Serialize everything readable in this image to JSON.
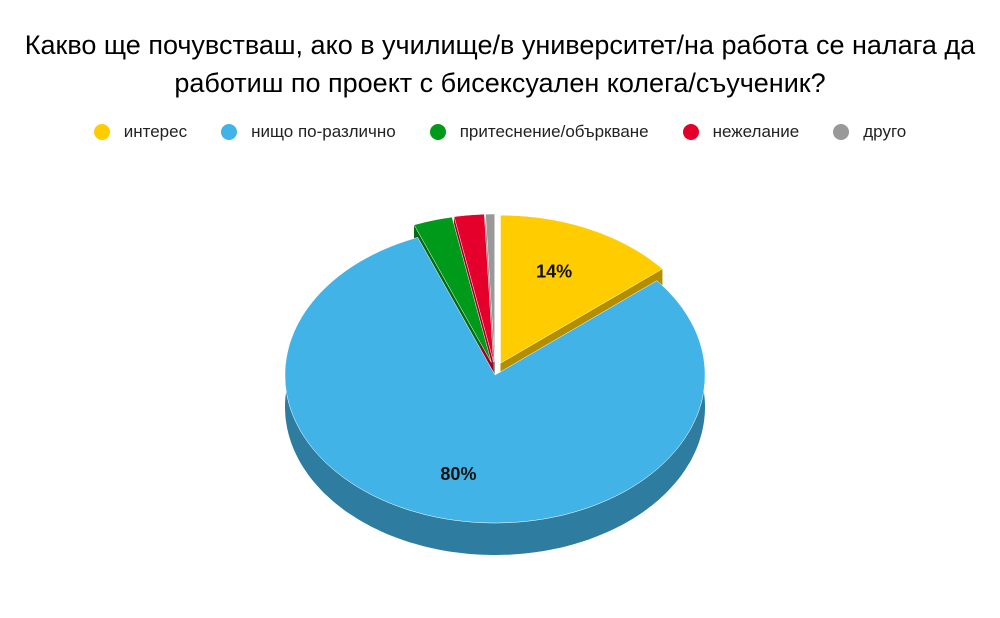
{
  "chart_data": {
    "type": "pie3d",
    "title": "Какво ще почувстваш, ако в училище/в университет/на работа се налага да работиш по проект с бисексуален колега/съученик?",
    "categories": [
      "интерес",
      "нищо по-различно",
      "притеснение/объркване",
      "нежелание",
      "друго"
    ],
    "values": [
      14,
      80,
      3,
      2.3,
      0.7
    ],
    "value_labels": [
      "14%",
      "80%",
      null,
      null,
      null
    ],
    "colors": [
      "#ffcc00",
      "#41b3e6",
      "#009a1a",
      "#e4002b",
      "#999999"
    ],
    "legend": "top"
  }
}
